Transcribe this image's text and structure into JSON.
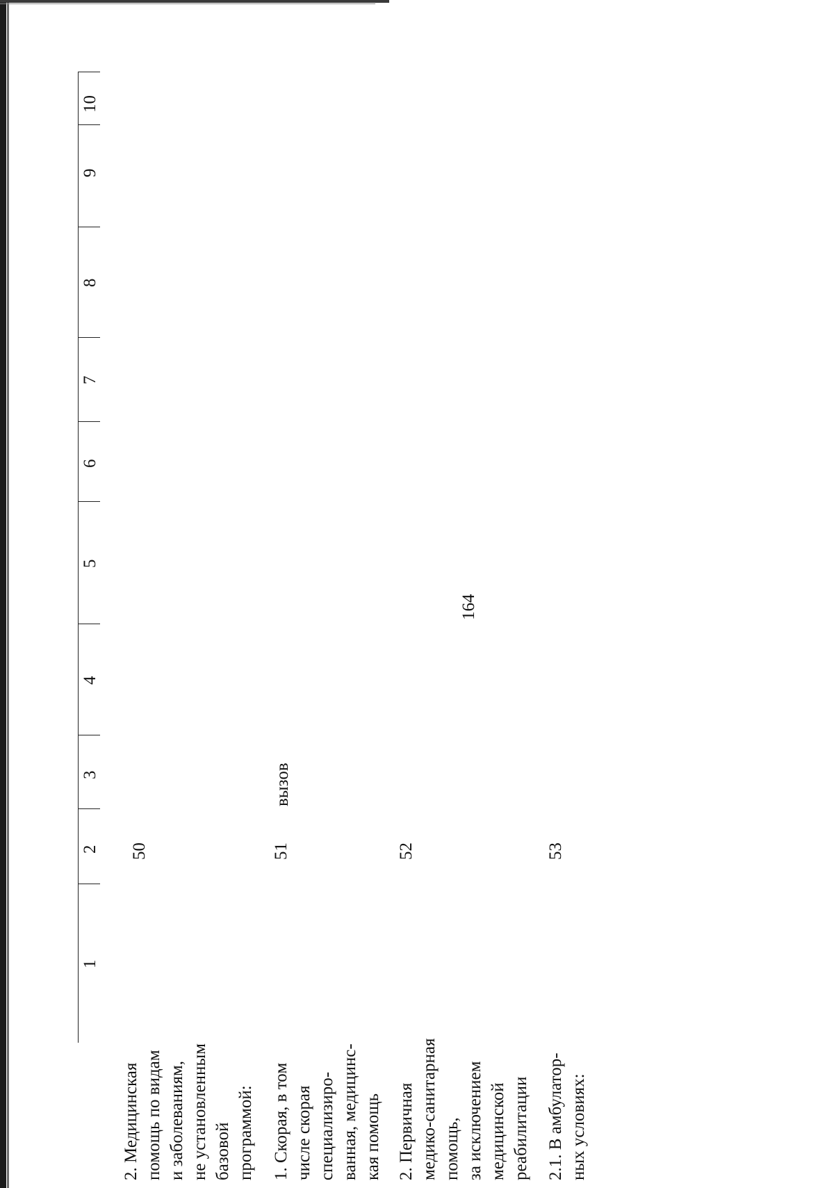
{
  "page_number": "164",
  "headers": [
    "1",
    "2",
    "3",
    "4",
    "5",
    "6",
    "7",
    "8",
    "9",
    "10"
  ],
  "rows": [
    {
      "label": "2. Медицинская\nпомощь по видам\nи заболеваниям,\nне установленным\nбазовой\nпрограммой:",
      "number": "50",
      "unit": ""
    },
    {
      "label": "1. Скорая, в том\nчисле скорая\nспециализиро-\nванная, медицинс-\nкая помощь",
      "number": "51",
      "unit": "вызов"
    },
    {
      "label": "2. Первичная\nмедико-санитарная\nпомощь,\nза исключением\nмедицинской\nреабилитации",
      "number": "52",
      "unit": ""
    },
    {
      "label": "2.1. В амбулатор-\nных условиях:",
      "number": "53",
      "unit": ""
    }
  ]
}
